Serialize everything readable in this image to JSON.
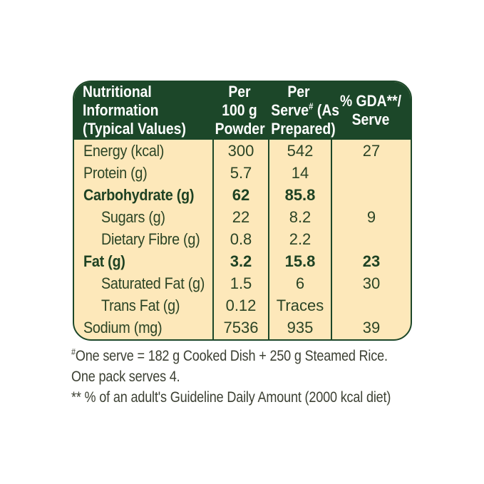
{
  "colors": {
    "header_green": "#1c4729",
    "body_cream": "#fde8ba",
    "body_text_green": "#2b4425",
    "note_text": "#3c4033"
  },
  "table": {
    "header": {
      "col1_line1": "Nutritional",
      "col1_line2": "Information",
      "col1_line3": "(Typical Values)",
      "col2_line1": "Per",
      "col2_line2": "100 g",
      "col2_line3": "Powder",
      "col3_line1": "Per",
      "col3_line2_pre": "Serve",
      "col3_line2_sup": "#",
      "col3_line2_post": " (As",
      "col3_line3": "Prepared)",
      "col4_line1": "% GDA**/",
      "col4_line2": "Serve"
    },
    "rows": [
      {
        "label": "Energy (kcal)",
        "per100g": "300",
        "perServe": "542",
        "gda": "27"
      },
      {
        "label": "Protein (g)",
        "per100g": "5.7",
        "perServe": "14",
        "gda": ""
      },
      {
        "label": "Carbohydrate (g)",
        "per100g": "62",
        "perServe": "85.8",
        "gda": ""
      },
      {
        "label": "Sugars (g)",
        "per100g": "22",
        "perServe": "8.2",
        "gda": "9"
      },
      {
        "label": "Dietary Fibre (g)",
        "per100g": "0.8",
        "perServe": "2.2",
        "gda": ""
      },
      {
        "label": "Fat (g)",
        "per100g": "3.2",
        "perServe": "15.8",
        "gda": "23"
      },
      {
        "label": "Saturated Fat (g)",
        "per100g": "1.5",
        "perServe": "6",
        "gda": "30"
      },
      {
        "label": "Trans Fat (g)",
        "per100g": "0.12",
        "perServe": "Traces",
        "gda": ""
      },
      {
        "label": "Sodium (mg)",
        "per100g": "7536",
        "perServe": "935",
        "gda": "39"
      }
    ]
  },
  "footnotes": {
    "note1_sup": "#",
    "note1_text": "One serve = 182 g Cooked Dish + 250 g Steamed Rice.",
    "note2_text": "One pack serves 4.",
    "note3_text": "** % of an adult's Guideline Daily Amount (2000 kcal diet)"
  }
}
